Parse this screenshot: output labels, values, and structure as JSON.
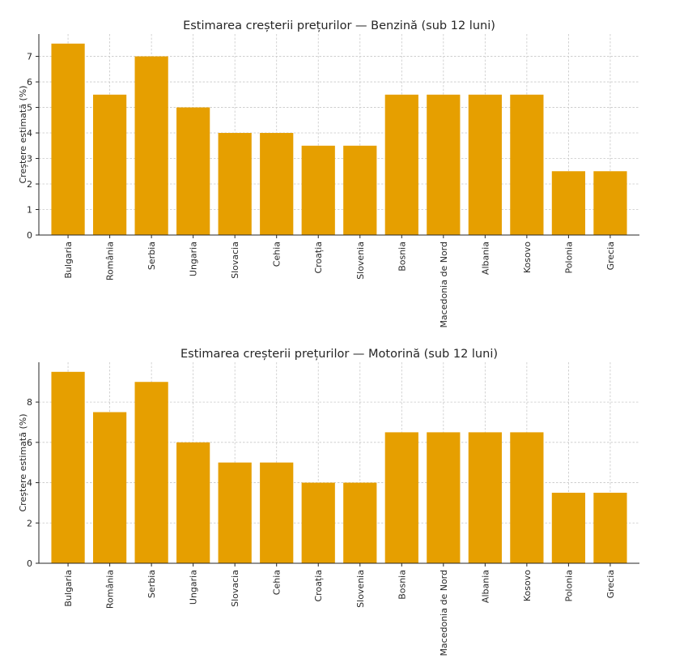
{
  "chart_data": [
    {
      "type": "bar",
      "title": "Estimarea creșterii prețurilor — Benzină (sub 12 luni)",
      "xlabel": "",
      "ylabel": "Creștere estimată (%)",
      "categories": [
        "Bulgaria",
        "România",
        "Serbia",
        "Ungaria",
        "Slovacia",
        "Cehia",
        "Croația",
        "Slovenia",
        "Bosnia",
        "Macedonia de Nord",
        "Albania",
        "Kosovo",
        "Polonia",
        "Grecia"
      ],
      "values": [
        7.5,
        5.5,
        7.0,
        5.0,
        4.0,
        4.0,
        3.5,
        3.5,
        5.5,
        5.5,
        5.5,
        5.5,
        2.5,
        2.5
      ],
      "ylim": [
        0,
        7.875
      ],
      "yticks": [
        0,
        1,
        2,
        3,
        4,
        5,
        6,
        7
      ],
      "grid": true,
      "bar_color": "#E69F00"
    },
    {
      "type": "bar",
      "title": "Estimarea creșterii prețurilor — Motorină (sub 12 luni)",
      "xlabel": "",
      "ylabel": "Creștere estimată (%)",
      "categories": [
        "Bulgaria",
        "România",
        "Serbia",
        "Ungaria",
        "Slovacia",
        "Cehia",
        "Croația",
        "Slovenia",
        "Bosnia",
        "Macedonia de Nord",
        "Albania",
        "Kosovo",
        "Polonia",
        "Grecia"
      ],
      "values": [
        9.5,
        7.5,
        9.0,
        6.0,
        5.0,
        5.0,
        4.0,
        4.0,
        6.5,
        6.5,
        6.5,
        6.5,
        3.5,
        3.5
      ],
      "ylim": [
        0,
        9.975
      ],
      "yticks": [
        0,
        2,
        4,
        6,
        8
      ],
      "grid": true,
      "bar_color": "#E69F00"
    }
  ]
}
